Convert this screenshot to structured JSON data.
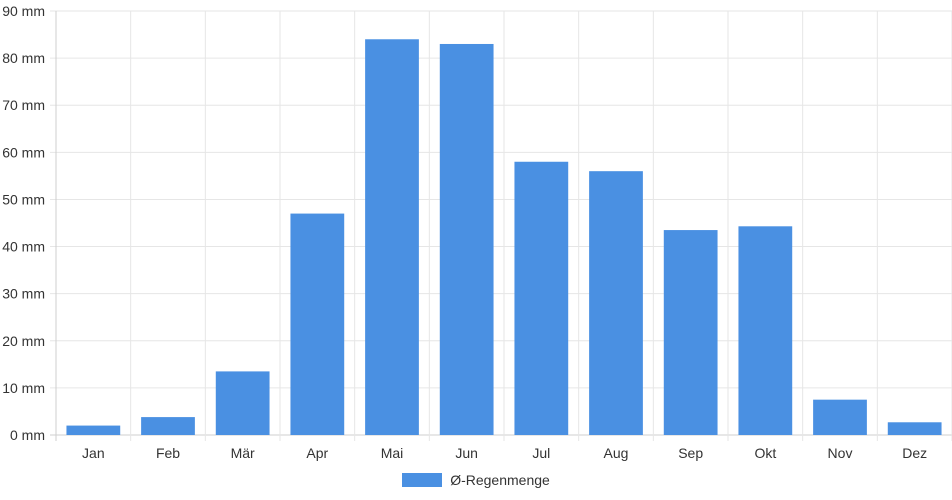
{
  "chart_data": {
    "type": "bar",
    "categories": [
      "Jan",
      "Feb",
      "Mär",
      "Apr",
      "Mai",
      "Jun",
      "Jul",
      "Aug",
      "Sep",
      "Okt",
      "Nov",
      "Dez"
    ],
    "series": [
      {
        "name": "Ø-Regenmenge",
        "values": [
          2,
          3.8,
          13.5,
          47,
          84,
          83,
          58,
          56,
          43.5,
          44.3,
          7.5,
          2.7
        ],
        "color": "#4a90e2"
      }
    ],
    "y_ticks": [
      "0 mm",
      "10 mm",
      "20 mm",
      "30 mm",
      "40 mm",
      "50 mm",
      "60 mm",
      "70 mm",
      "80 mm",
      "90 mm"
    ],
    "ylim": [
      0,
      90
    ],
    "unit": "mm",
    "grid": true,
    "legend_position": "bottom-center"
  }
}
